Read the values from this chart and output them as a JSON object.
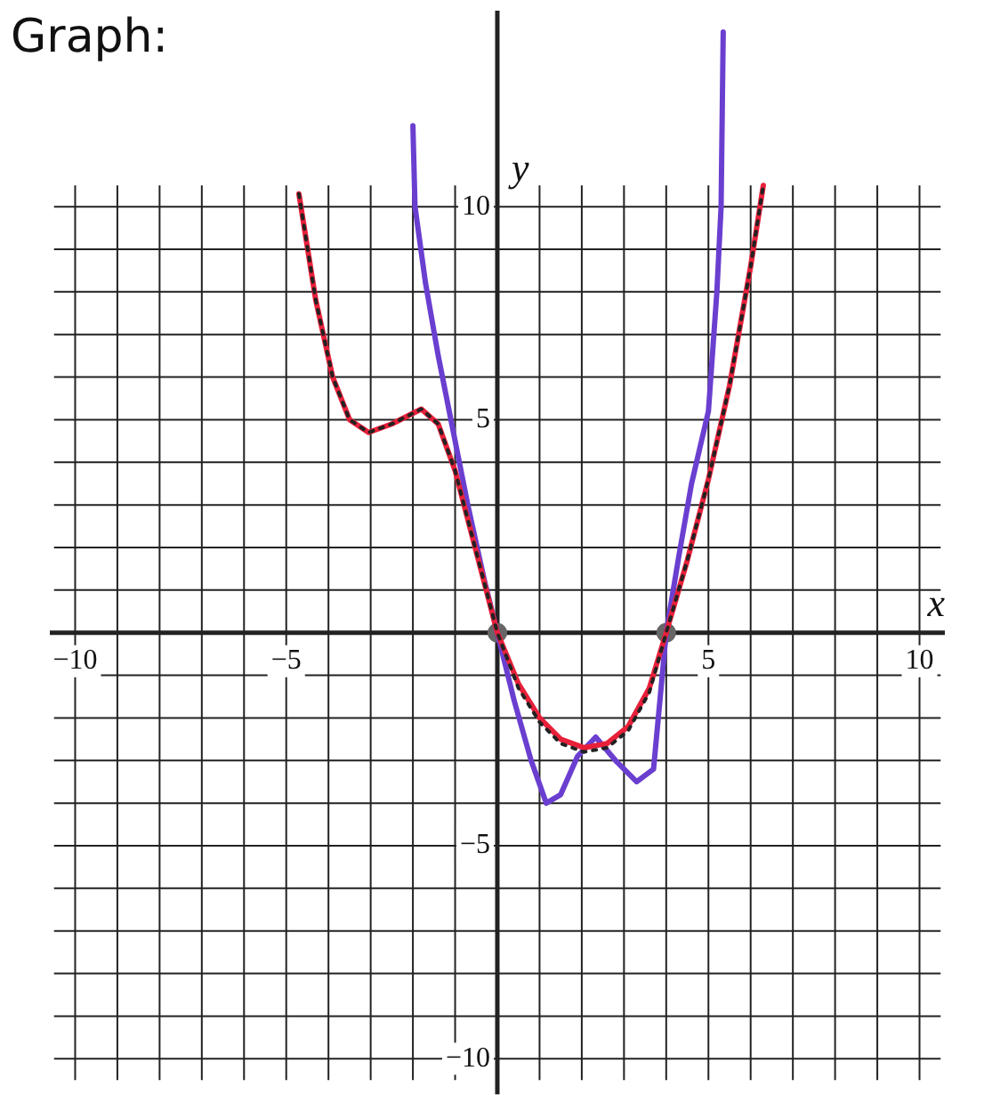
{
  "chart_data": {
    "type": "line",
    "title": "Graph:",
    "xlabel": "x",
    "ylabel": "y",
    "xlim": [
      -10.6,
      10.6
    ],
    "ylim": [
      -10.6,
      14.6
    ],
    "xticks": [
      {
        "value": -10,
        "label": "−10"
      },
      {
        "value": -9,
        "label": null
      },
      {
        "value": -8,
        "label": null
      },
      {
        "value": -7,
        "label": null
      },
      {
        "value": -6,
        "label": null
      },
      {
        "value": -5,
        "label": "−5"
      },
      {
        "value": -4,
        "label": null
      },
      {
        "value": -3,
        "label": null
      },
      {
        "value": -2,
        "label": null
      },
      {
        "value": -1,
        "label": null
      },
      {
        "value": 0,
        "label": null
      },
      {
        "value": 1,
        "label": null
      },
      {
        "value": 2,
        "label": null
      },
      {
        "value": 3,
        "label": null
      },
      {
        "value": 4,
        "label": null
      },
      5,
      {
        "value": 6,
        "label": null
      },
      {
        "value": 7,
        "label": null
      },
      {
        "value": 8,
        "label": null
      },
      {
        "value": 9,
        "label": null
      },
      10
    ],
    "yticks": [
      {
        "value": -10,
        "label": "−10"
      },
      {
        "value": -9,
        "label": null
      },
      {
        "value": -8,
        "label": null
      },
      {
        "value": -7,
        "label": null
      },
      {
        "value": -6,
        "label": null
      },
      {
        "value": -5,
        "label": "−5"
      },
      {
        "value": -4,
        "label": null
      },
      {
        "value": -3,
        "label": null
      },
      {
        "value": -2,
        "label": null
      },
      {
        "value": -1,
        "label": null
      },
      {
        "value": 0,
        "label": null
      },
      {
        "value": 1,
        "label": null
      },
      {
        "value": 2,
        "label": null
      },
      {
        "value": 3,
        "label": null
      },
      {
        "value": 4,
        "label": null
      },
      5,
      {
        "value": 6,
        "label": null
      },
      {
        "value": 7,
        "label": null
      },
      {
        "value": 8,
        "label": null
      },
      {
        "value": 9,
        "label": null
      },
      10
    ],
    "grid": true,
    "series": [
      {
        "color": "#222222",
        "line_style": "dotted",
        "marker": "none",
        "x": [
          -4.7,
          -4.3,
          -3.9,
          -3.5,
          -3.05,
          -2.5,
          -1.8,
          -1.4,
          -1.0,
          -0.5,
          0,
          0.5,
          1.0,
          1.5,
          2.05,
          2.6,
          3.1,
          3.6,
          4.0,
          4.5,
          5.0,
          5.5,
          6.0,
          6.3
        ],
        "values": [
          10.3,
          7.8,
          6.0,
          5.0,
          4.7,
          4.9,
          5.25,
          4.9,
          3.8,
          1.9,
          0,
          -1.3,
          -2.1,
          -2.6,
          -2.8,
          -2.7,
          -2.3,
          -1.4,
          0,
          1.7,
          3.6,
          5.8,
          8.6,
          10.5
        ]
      },
      {
        "color": "#e8203a",
        "line_style": "solid",
        "marker": "none",
        "x": [
          -4.7,
          -4.3,
          -3.9,
          -3.5,
          -3.05,
          -2.5,
          -1.8,
          -1.4,
          -1.0,
          -0.5,
          0,
          0.5,
          1.0,
          1.5,
          2.05,
          2.6,
          3.1,
          3.6,
          4.0,
          4.5,
          5.0,
          5.5,
          6.0,
          6.3
        ],
        "values": [
          10.3,
          7.8,
          6.0,
          5.0,
          4.7,
          4.9,
          5.25,
          4.9,
          3.8,
          1.9,
          0,
          -1.2,
          -2.0,
          -2.5,
          -2.7,
          -2.6,
          -2.2,
          -1.3,
          0,
          1.7,
          3.6,
          5.8,
          8.6,
          10.5
        ]
      },
      {
        "color": "#6a3fd0",
        "line_style": "solid",
        "marker": "none",
        "x": [
          -2.0,
          -1.95,
          -1.7,
          -1.4,
          -1.1,
          -0.7,
          -0.3,
          0,
          0.4,
          0.8,
          1.16,
          1.5,
          1.9,
          2.33,
          2.8,
          3.3,
          3.7,
          4.0,
          4.3,
          4.6,
          5.0,
          5.2,
          5.3,
          5.35
        ],
        "values": [
          11.9,
          10,
          8.2,
          6.5,
          5,
          3,
          1.2,
          0,
          -1.6,
          -3.0,
          -4.0,
          -3.8,
          -2.9,
          -2.45,
          -3.0,
          -3.5,
          -3.2,
          0,
          1.8,
          3.5,
          5.2,
          8,
          10,
          14.1
        ]
      },
      {
        "type": "scatter",
        "color": "#666666",
        "marker": "circle",
        "x": [
          0,
          4
        ],
        "values": [
          0,
          0
        ]
      }
    ]
  }
}
